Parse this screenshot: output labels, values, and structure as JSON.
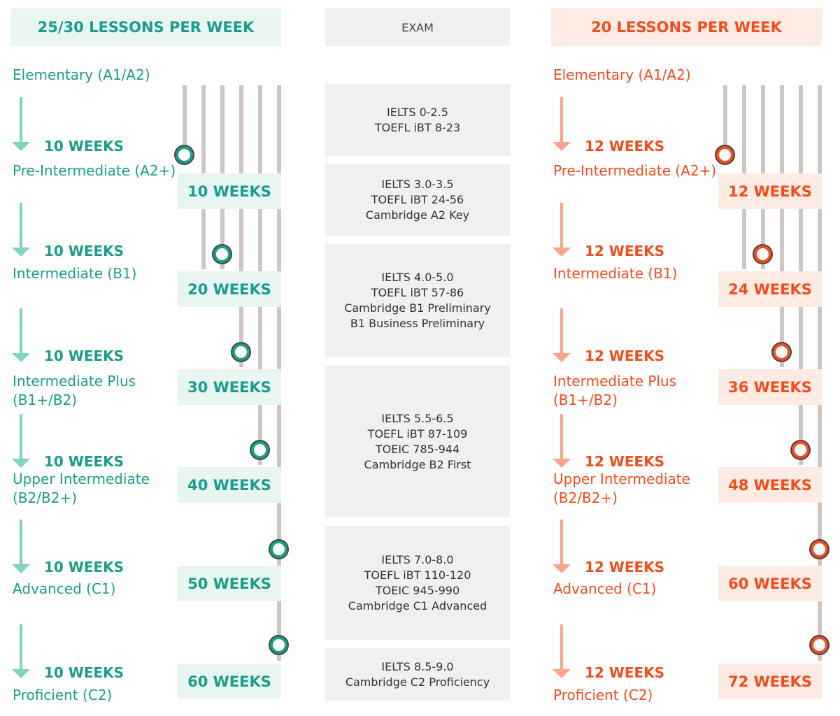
{
  "headers": {
    "left": "25/30 LESSONS PER WEEK",
    "middle": "EXAM",
    "right": "20 LESSONS PER WEEK"
  },
  "levels": [
    "Elementary (A1/A2)",
    "Pre-Intermediate (A2+)",
    "Intermediate (B1)",
    "Intermediate Plus\n(B1+/B2)",
    "Upper Intermediate\n(B2/B2+)",
    "Advanced (C1)",
    "Proficient (C2)"
  ],
  "left": {
    "step_duration": "10 WEEKS",
    "totals": [
      "10 WEEKS",
      "20 WEEKS",
      "30 WEEKS",
      "40 WEEKS",
      "50 WEEKS",
      "60 WEEKS"
    ]
  },
  "right": {
    "step_duration": "12 WEEKS",
    "totals": [
      "12 WEEKS",
      "24 WEEKS",
      "36 WEEKS",
      "48 WEEKS",
      "60 WEEKS",
      "72 WEEKS"
    ]
  },
  "exams": [
    [
      "IELTS 0-2.5",
      "TOEFL iBT 8-23"
    ],
    [
      "IELTS 3.0-3.5",
      "TOEFL iBT 24-56",
      "Cambridge A2 Key"
    ],
    [
      "IELTS 4.0-5.0",
      "TOEFL iBT 57-86",
      "Cambridge B1 Preliminary",
      "B1 Business Preliminary"
    ],
    [
      "IELTS 5.5-6.5",
      "TOEFL iBT 87-109",
      "TOEIC 785-944",
      "Cambridge B2 First"
    ],
    [
      "IELTS 7.0-8.0",
      "TOEFL iBT 110-120",
      "TOEIC 945-990",
      "Cambridge C1 Advanced"
    ],
    [
      "IELTS 8.5-9.0",
      "Cambridge C2 Proficiency"
    ]
  ],
  "colors": {
    "left_accent": "#1a9e88",
    "right_accent": "#f24d1d",
    "rail": "#cdc6c3"
  }
}
